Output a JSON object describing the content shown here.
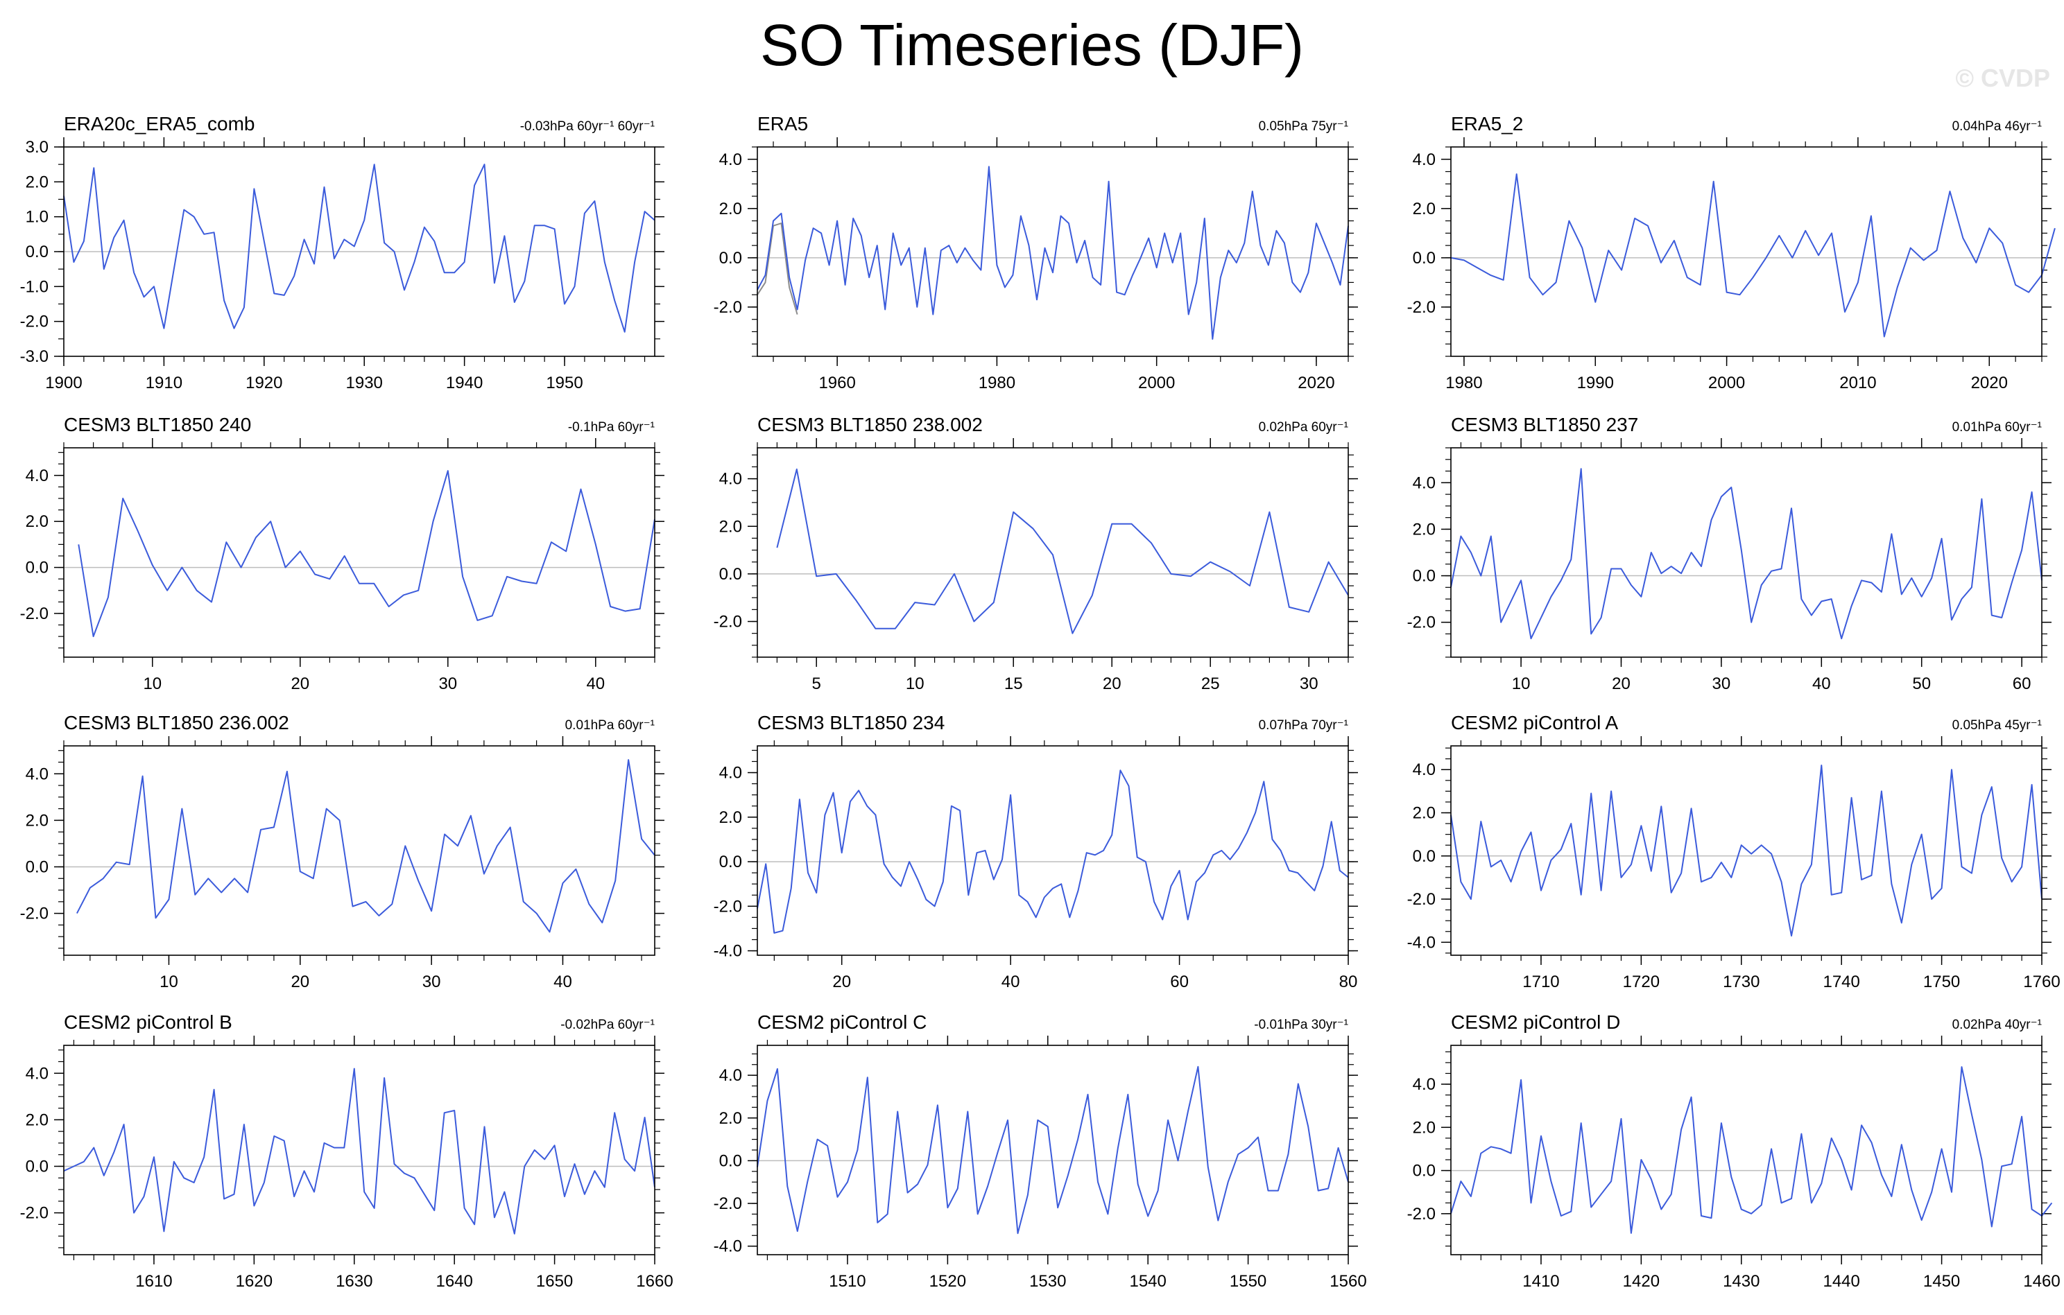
{
  "figure": {
    "title": "SO Timeseries (DJF)",
    "watermark": "© CVDP",
    "line_color": "#3b5bdb",
    "gray_color": "#8c8c8c"
  },
  "chart_data": [
    {
      "type": "line",
      "title": "ERA20c_ERA5_comb",
      "trend": "-0.03hPa 60yr⁻¹ 60yr⁻¹",
      "xlim": [
        1900,
        1959
      ],
      "ylim": [
        -3.0,
        3.0
      ],
      "xticks": [
        1900,
        1910,
        1920,
        1930,
        1940,
        1950
      ],
      "yticks": [
        -3.0,
        -2.0,
        -1.0,
        0.0,
        1.0,
        2.0,
        3.0
      ],
      "series": [
        {
          "x0": 1900,
          "values": [
            1.6,
            -0.3,
            0.3,
            2.4,
            -0.5,
            0.4,
            0.9,
            -0.6,
            -1.3,
            -1.0,
            -2.2,
            -0.5,
            1.2,
            1.0,
            0.5,
            0.55,
            -1.4,
            -2.2,
            -1.6,
            1.8,
            0.3,
            -1.2,
            -1.25,
            -0.7,
            0.35,
            -0.35,
            1.85,
            -0.2,
            0.35,
            0.15,
            0.9,
            2.5,
            0.25,
            0.0,
            -1.1,
            -0.3,
            0.7,
            0.3,
            -0.6,
            -0.6,
            -0.3,
            1.9,
            2.5,
            -0.9,
            0.45,
            -1.45,
            -0.85,
            0.75,
            0.75,
            0.65,
            -1.5,
            -1.0,
            1.1,
            1.45,
            -0.3,
            -1.4,
            -2.3,
            -0.3,
            1.15,
            0.9
          ]
        }
      ]
    },
    {
      "type": "line",
      "title": "ERA5",
      "trend": "0.05hPa 75yr⁻¹",
      "xlim": [
        1950,
        2024
      ],
      "ylim": [
        -4.0,
        4.5
      ],
      "xticks": [
        1960,
        1980,
        2000,
        2020
      ],
      "yticks": [
        -2.0,
        0.0,
        2.0,
        4.0
      ],
      "series": [
        {
          "x0": 1950,
          "gray": true,
          "values": [
            -1.5,
            -1.0,
            1.3,
            1.4,
            -1.2,
            -2.3
          ]
        },
        {
          "x0": 1950,
          "values": [
            -1.3,
            -0.7,
            1.5,
            1.8,
            -0.8,
            -2.1,
            -0.1,
            1.2,
            1.0,
            -0.3,
            1.5,
            -1.1,
            1.6,
            0.9,
            -0.8,
            0.5,
            -2.1,
            1.0,
            -0.3,
            0.4,
            -2.0,
            0.4,
            -2.3,
            0.3,
            0.5,
            -0.2,
            0.4,
            -0.1,
            -0.5,
            3.7,
            -0.3,
            -1.2,
            -0.7,
            1.7,
            0.5,
            -1.7,
            0.4,
            -0.6,
            1.7,
            1.4,
            -0.2,
            0.7,
            -0.8,
            -1.1,
            3.1,
            -1.4,
            -1.5,
            -0.7,
            0.0,
            0.8,
            -0.4,
            1.0,
            -0.2,
            1.0,
            -2.3,
            -1.0,
            1.6,
            -3.3,
            -0.8,
            0.3,
            -0.2,
            0.6,
            2.7,
            0.5,
            -0.3,
            1.1,
            0.6,
            -1.0,
            -1.4,
            -0.6,
            1.4,
            0.6,
            -0.2,
            -1.1,
            1.3
          ]
        }
      ]
    },
    {
      "type": "line",
      "title": "ERA5_2",
      "trend": "0.04hPa 46yr⁻¹",
      "xlim": [
        1979,
        2024
      ],
      "ylim": [
        -4.0,
        4.5
      ],
      "xticks": [
        1980,
        1990,
        2000,
        2010,
        2020
      ],
      "yticks": [
        -2.0,
        0.0,
        2.0,
        4.0
      ],
      "series": [
        {
          "x0": 1979,
          "values": [
            0.0,
            -0.1,
            -0.4,
            -0.7,
            -0.9,
            3.4,
            -0.8,
            -1.5,
            -1.0,
            1.5,
            0.4,
            -1.8,
            0.3,
            -0.5,
            1.6,
            1.3,
            -0.2,
            0.7,
            -0.8,
            -1.1,
            3.1,
            -1.4,
            -1.5,
            -0.8,
            0.0,
            0.9,
            0.0,
            1.1,
            0.1,
            1.0,
            -2.2,
            -1.0,
            1.7,
            -3.2,
            -1.2,
            0.4,
            -0.1,
            0.3,
            2.7,
            0.8,
            -0.2,
            1.2,
            0.6,
            -1.1,
            -1.4,
            -0.7,
            1.2
          ]
        }
      ]
    },
    {
      "type": "line",
      "title": "CESM3 BLT1850 240",
      "trend": "-0.1hPa 60yr⁻¹",
      "xlim": [
        4,
        44
      ],
      "ylim": [
        -3.9,
        5.2
      ],
      "xticks": [
        10,
        20,
        30,
        40
      ],
      "yticks": [
        -2.0,
        0.0,
        2.0,
        4.0
      ],
      "series": [
        {
          "x0": 5,
          "values": [
            1.0,
            -3.0,
            -1.3,
            3.0,
            1.6,
            0.1,
            -1.0,
            0.0,
            -1.0,
            -1.5,
            1.1,
            0.0,
            1.3,
            2.0,
            0.0,
            0.7,
            -0.3,
            -0.5,
            0.5,
            -0.7,
            -0.7,
            -1.7,
            -1.2,
            -1.0,
            2.0,
            4.2,
            -0.4,
            -2.3,
            -2.1,
            -0.4,
            -0.6,
            -0.7,
            1.1,
            0.7,
            3.4,
            1.0,
            -1.7,
            -1.9,
            -1.8,
            2.1
          ]
        }
      ]
    },
    {
      "type": "line",
      "title": "CESM3 BLT1850 238.002",
      "trend": "0.02hPa 60yr⁻¹",
      "xlim": [
        2,
        32
      ],
      "ylim": [
        -3.5,
        5.3
      ],
      "xticks": [
        5,
        10,
        15,
        20,
        25,
        30
      ],
      "yticks": [
        -2.0,
        0.0,
        2.0,
        4.0
      ],
      "series": [
        {
          "x0": 3,
          "values": [
            1.1,
            4.4,
            -0.1,
            0.0,
            -1.1,
            -2.3,
            -2.3,
            -1.2,
            -1.3,
            0.0,
            -2.0,
            -1.2,
            2.6,
            1.9,
            0.8,
            -2.5,
            -0.9,
            2.1,
            2.1,
            1.3,
            0.0,
            -0.1,
            0.5,
            0.1,
            -0.5,
            2.6,
            -1.4,
            -1.6,
            0.5,
            -0.9
          ]
        }
      ]
    },
    {
      "type": "line",
      "title": "CESM3 BLT1850 237",
      "trend": "0.01hPa 60yr⁻¹",
      "xlim": [
        3,
        62
      ],
      "ylim": [
        -3.5,
        5.5
      ],
      "xticks": [
        10,
        20,
        30,
        40,
        50,
        60
      ],
      "yticks": [
        -2.0,
        0.0,
        2.0,
        4.0
      ],
      "series": [
        {
          "x0": 3,
          "values": [
            -0.5,
            1.7,
            1.0,
            0.0,
            1.7,
            -2.0,
            -1.1,
            -0.2,
            -2.7,
            -1.8,
            -0.9,
            -0.2,
            0.7,
            4.6,
            -2.5,
            -1.8,
            0.3,
            0.3,
            -0.4,
            -0.9,
            1.0,
            0.1,
            0.4,
            0.1,
            1.0,
            0.4,
            2.4,
            3.4,
            3.8,
            1.1,
            -2.0,
            -0.4,
            0.2,
            0.3,
            2.9,
            -1.0,
            -1.7,
            -1.1,
            -1.0,
            -2.7,
            -1.3,
            -0.2,
            -0.3,
            -0.7,
            1.8,
            -0.8,
            -0.1,
            -0.9,
            -0.1,
            1.6,
            -1.9,
            -1.0,
            -0.5,
            3.3,
            -1.7,
            -1.8,
            -0.3,
            1.1,
            3.6,
            -0.2
          ]
        }
      ]
    },
    {
      "type": "line",
      "title": "CESM3 BLT1850 236.002",
      "trend": "0.01hPa 60yr⁻¹",
      "xlim": [
        2,
        47
      ],
      "ylim": [
        -3.8,
        5.2
      ],
      "xticks": [
        10,
        20,
        30,
        40
      ],
      "yticks": [
        -2.0,
        0.0,
        2.0,
        4.0
      ],
      "series": [
        {
          "x0": 3,
          "values": [
            -2.0,
            -0.9,
            -0.5,
            0.2,
            0.1,
            3.9,
            -2.2,
            -1.4,
            2.5,
            -1.2,
            -0.5,
            -1.1,
            -0.5,
            -1.1,
            1.6,
            1.7,
            4.1,
            -0.2,
            -0.5,
            2.5,
            2.0,
            -1.7,
            -1.5,
            -2.1,
            -1.6,
            0.9,
            -0.6,
            -1.9,
            1.4,
            0.9,
            2.2,
            -0.3,
            0.9,
            1.7,
            -1.5,
            -2.0,
            -2.8,
            -0.7,
            -0.1,
            -1.6,
            -2.4,
            -0.6,
            4.6,
            1.2,
            0.5
          ]
        }
      ]
    },
    {
      "type": "line",
      "title": "CESM3 BLT1850 234",
      "trend": "0.07hPa 70yr⁻¹",
      "xlim": [
        10,
        80
      ],
      "ylim": [
        -4.2,
        5.2
      ],
      "xticks": [
        20,
        40,
        60,
        80
      ],
      "yticks": [
        -4.0,
        -2.0,
        0.0,
        2.0,
        4.0
      ],
      "series": [
        {
          "x0": 10,
          "values": [
            -2.1,
            -0.1,
            -3.2,
            -3.1,
            -1.2,
            2.8,
            -0.5,
            -1.4,
            2.1,
            3.1,
            0.4,
            2.7,
            3.2,
            2.5,
            2.1,
            -0.1,
            -0.7,
            -1.1,
            0.0,
            -0.8,
            -1.7,
            -2.0,
            -0.9,
            2.5,
            2.3,
            -1.5,
            0.4,
            0.5,
            -0.8,
            0.1,
            3.0,
            -1.5,
            -1.8,
            -2.5,
            -1.6,
            -1.2,
            -1.0,
            -2.5,
            -1.3,
            0.4,
            0.3,
            0.5,
            1.2,
            4.1,
            3.4,
            0.2,
            0.0,
            -1.8,
            -2.6,
            -1.1,
            -0.4,
            -2.6,
            -0.9,
            -0.5,
            0.3,
            0.5,
            0.1,
            0.6,
            1.3,
            2.2,
            3.6,
            1.0,
            0.5,
            -0.4,
            -0.5,
            -0.9,
            -1.3,
            -0.2,
            1.8,
            -0.4,
            -0.7
          ]
        }
      ]
    },
    {
      "type": "line",
      "title": "CESM2 piControl A",
      "trend": "0.05hPa 45yr⁻¹",
      "xlim": [
        1701,
        1760
      ],
      "ylim": [
        -4.6,
        5.1
      ],
      "xticks": [
        1710,
        1720,
        1730,
        1740,
        1750,
        1760
      ],
      "yticks": [
        -4.0,
        -2.0,
        0.0,
        2.0,
        4.0
      ],
      "series": [
        {
          "x0": 1701,
          "values": [
            1.9,
            -1.2,
            -2.0,
            1.6,
            -0.5,
            -0.2,
            -1.2,
            0.2,
            1.1,
            -1.6,
            -0.2,
            0.3,
            1.5,
            -1.8,
            2.9,
            -1.6,
            3.0,
            -1.0,
            -0.4,
            1.4,
            -0.7,
            2.3,
            -1.7,
            -0.8,
            2.2,
            -1.2,
            -1.0,
            -0.3,
            -1.0,
            0.5,
            0.1,
            0.5,
            0.1,
            -1.2,
            -3.7,
            -1.3,
            -0.4,
            4.2,
            -1.8,
            -1.7,
            2.7,
            -1.1,
            -0.9,
            3.0,
            -1.3,
            -3.1,
            -0.4,
            1.0,
            -2.0,
            -1.5,
            4.0,
            -0.5,
            -0.8,
            1.9,
            3.2,
            -0.1,
            -1.2,
            -0.5,
            3.3,
            -2.0
          ]
        }
      ]
    },
    {
      "type": "line",
      "title": "CESM2 piControl B",
      "trend": "-0.02hPa 60yr⁻¹",
      "xlim": [
        1601,
        1660
      ],
      "ylim": [
        -3.8,
        5.2
      ],
      "xticks": [
        1610,
        1620,
        1630,
        1640,
        1650,
        1660
      ],
      "yticks": [
        -2.0,
        0.0,
        2.0,
        4.0
      ],
      "series": [
        {
          "x0": 1601,
          "values": [
            -0.2,
            0.0,
            0.2,
            0.8,
            -0.4,
            0.6,
            1.8,
            -2.0,
            -1.3,
            0.4,
            -2.8,
            0.2,
            -0.5,
            -0.7,
            0.4,
            3.3,
            -1.4,
            -1.2,
            1.8,
            -1.7,
            -0.7,
            1.3,
            1.1,
            -1.3,
            -0.2,
            -1.1,
            1.0,
            0.8,
            0.8,
            4.2,
            -1.1,
            -1.8,
            3.8,
            0.1,
            -0.3,
            -0.5,
            -1.2,
            -1.9,
            2.3,
            2.4,
            -1.8,
            -2.5,
            1.7,
            -2.2,
            -1.1,
            -2.9,
            0.0,
            0.7,
            0.3,
            0.9,
            -1.3,
            0.1,
            -1.2,
            -0.2,
            -0.9,
            2.3,
            0.3,
            -0.2,
            2.1,
            -0.9
          ]
        }
      ]
    },
    {
      "type": "line",
      "title": "CESM2 piControl C",
      "trend": "-0.01hPa 30yr⁻¹",
      "xlim": [
        1501,
        1560
      ],
      "ylim": [
        -4.4,
        5.4
      ],
      "xticks": [
        1510,
        1520,
        1530,
        1540,
        1550,
        1560
      ],
      "yticks": [
        -4.0,
        -2.0,
        0.0,
        2.0,
        4.0
      ],
      "series": [
        {
          "x0": 1501,
          "values": [
            -0.3,
            2.8,
            4.3,
            -1.2,
            -3.3,
            -1.0,
            1.0,
            0.7,
            -1.7,
            -1.0,
            0.5,
            3.9,
            -2.9,
            -2.5,
            2.3,
            -1.5,
            -1.1,
            -0.2,
            2.6,
            -2.2,
            -1.3,
            2.3,
            -2.5,
            -1.2,
            0.4,
            1.9,
            -3.4,
            -1.6,
            1.9,
            1.6,
            -2.2,
            -0.7,
            1.0,
            3.1,
            -1.0,
            -2.5,
            0.6,
            3.1,
            -1.1,
            -2.6,
            -1.4,
            1.9,
            0.0,
            2.3,
            4.4,
            -0.3,
            -2.8,
            -1.0,
            0.3,
            0.6,
            1.1,
            -1.4,
            -1.4,
            0.3,
            3.6,
            1.6,
            -1.4,
            -1.3,
            0.6,
            -1.0
          ]
        }
      ]
    },
    {
      "type": "line",
      "title": "CESM2 piControl D",
      "trend": "0.02hPa 40yr⁻¹",
      "xlim": [
        1401,
        1460
      ],
      "ylim": [
        -3.9,
        5.8
      ],
      "xticks": [
        1410,
        1420,
        1430,
        1440,
        1450,
        1460
      ],
      "yticks": [
        -2.0,
        0.0,
        2.0,
        4.0
      ],
      "series": [
        {
          "x0": 1401,
          "values": [
            -2.0,
            -0.5,
            -1.2,
            0.8,
            1.1,
            1.0,
            0.8,
            4.2,
            -1.5,
            1.6,
            -0.5,
            -2.1,
            -1.9,
            2.2,
            -1.7,
            -1.1,
            -0.5,
            2.4,
            -2.9,
            0.5,
            -0.4,
            -1.8,
            -1.1,
            1.9,
            3.4,
            -2.1,
            -2.2,
            2.2,
            -0.3,
            -1.8,
            -2.0,
            -1.6,
            1.0,
            -1.5,
            -1.3,
            1.7,
            -1.5,
            -0.6,
            1.5,
            0.5,
            -0.9,
            2.1,
            1.3,
            -0.2,
            -1.2,
            1.2,
            -0.9,
            -2.3,
            -1.0,
            1.0,
            -1.0,
            4.8,
            2.6,
            0.5,
            -2.6,
            0.2,
            0.3,
            2.5,
            -1.8,
            -2.1,
            -1.5
          ]
        }
      ]
    }
  ]
}
